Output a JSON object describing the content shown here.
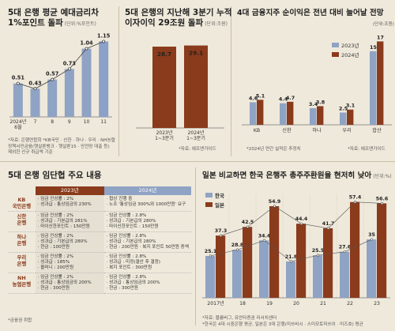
{
  "p1": {
    "title1": "5대 은행 평균 예대금리차",
    "title2": "1%포인트 돌파",
    "unit": "(단위:%포인트)",
    "notes": [
      "*자료: 은행연합회 *KB국민 · 신한 · 하나 · 우리 · NH농협",
      "정책서민금융(햇살론뱅크 · 햇살론15 · 안전망 대출 등)",
      "제외한 신규 취급액 기준"
    ],
    "colors": {
      "bar": "#8fa3c4",
      "last": "#8ba1c8",
      "line": "#444444"
    }
  },
  "p2": {
    "title1": "5대 은행의 지난해 3분기 누적",
    "title2": "이자이익 29조원 돌파",
    "unit": "(단위:조원)",
    "notes": [
      "*자료: 에프앤가이드"
    ],
    "colors": {
      "bar": "#8a3b1c"
    }
  },
  "p3": {
    "title1": "4대 금융지주 순이익은 전년 대비 늘어날 전망",
    "unit": "(단위:조원)",
    "notes": [
      "*2024년 연간 실적은 추정치",
      "*자료: 에프앤가이드"
    ],
    "colors": {
      "a": "#8fa3c4",
      "b": "#8a3b1c"
    }
  },
  "p4": {
    "title": "5대 은행 임단협 주요 내용",
    "head": [
      "2023년",
      "2024년"
    ],
    "rows": [
      {
        "bank": [
          "KB",
          "국민은행"
        ],
        "y2023": [
          "· 임금 인상률 : 2%",
          "· 성과급 : 통상임금의 230%"
        ],
        "y2024": [
          "· 협상 진행 중",
          "· 노조 '통상임금 300%와 1000만원' 요구"
        ]
      },
      {
        "bank": [
          "신한",
          "은행"
        ],
        "y2023": [
          "· 임금 인상률 : 2%",
          "· 성과급 : 기본급의 281%",
          "· 마이신한포인트 : 150만원"
        ],
        "y2024": [
          "· 임금 인상률 : 2.8%",
          "· 성과급 : 기본급의 280%",
          "· 마이신한포인트 : 150만원"
        ]
      },
      {
        "bank": [
          "하나",
          "은행"
        ],
        "y2023": [
          "· 임금 인상률 : 2%",
          "· 성과급 : 기본급의 280%",
          "· 현금 : 100만원"
        ],
        "y2024": [
          "· 임금 인상률 : 2.8%",
          "· 성과급 : 기본급의 280%",
          "· 현금 : 200만원 · 복지 포인트 50만원 증액"
        ]
      },
      {
        "bank": [
          "우리",
          "은행"
        ],
        "y2023": [
          "· 임금 인상률 : 2%",
          "· 성과급 : 185%",
          "· 올머니 : 200만원"
        ],
        "y2024": [
          "· 임금 인상률 : 2.8%",
          "· 성과급 : 미정(결산 후 결정)",
          "· 복지 포인트 : 300만원"
        ]
      },
      {
        "bank": [
          "NH",
          "농협은행"
        ],
        "y2023": [
          "· 임금 인상률 : 2%",
          "· 성과급 : 통상임금의 200%",
          "· 현금 : 300만원"
        ],
        "y2024": [
          "· 임금 인상률 : 2.8%",
          "· 성과급 : 통상임금의 200%",
          "· 현금 : 300만원"
        ]
      }
    ],
    "notes": [
      "*금융권 취합"
    ],
    "colors": {
      "h23": "#8a3b1c",
      "h24": "#8fa3c4"
    }
  },
  "p5": {
    "title": "일본 비교하면 한국 은행주 총주주환원율 현저히 낮아",
    "unit": "(단위:%)",
    "notes": [
      "*자료: 블룸버그, 유안타증권 리서치센터",
      "*한국은 4대 시중은행 평균, 일본은 3대 은행(미쓰비시 · 스미모토미쓰이 · 미즈호) 평균"
    ],
    "colors": {
      "kr": "#8fa3c4",
      "jp": "#8a3b1c"
    }
  },
  "chart_data": [
    {
      "type": "bar",
      "categories": [
        "2024년 6월",
        "7",
        "8",
        "9",
        "10",
        "11"
      ],
      "tick_lines": [
        [
          "2024년",
          "6월"
        ],
        [
          "7"
        ],
        [
          "8"
        ],
        [
          "9"
        ],
        [
          "10"
        ],
        [
          "11"
        ]
      ],
      "values": [
        0.51,
        0.43,
        0.57,
        0.73,
        1.04,
        1.15
      ],
      "labels": [
        "0.51",
        "0.43",
        "0.57",
        "0.73",
        "1.04",
        "1.15"
      ],
      "ylim": [
        0,
        1.3
      ]
    },
    {
      "type": "bar",
      "categories": [
        "2023년 1~3분기",
        "2024년 1~3분기"
      ],
      "tick_lines": [
        [
          "2023년",
          "1~3분기"
        ],
        [
          "2024년",
          "1~3분기"
        ]
      ],
      "values": [
        28.7,
        29.1
      ],
      "labels": [
        "28.7",
        "29.1"
      ],
      "ylim": [
        0,
        34
      ]
    },
    {
      "type": "bar",
      "categories": [
        "KB",
        "신한",
        "하나",
        "우리",
        "합산"
      ],
      "series": [
        {
          "name": "2023년",
          "values": [
            4.6,
            4.4,
            3.4,
            2.5,
            15
          ],
          "labels": [
            "4.6",
            "4.4",
            "3.4",
            "2.5",
            "15"
          ]
        },
        {
          "name": "2024년",
          "values": [
            5.1,
            4.7,
            3.8,
            3.1,
            17
          ],
          "labels": [
            "5.1",
            "4.7",
            "3.8",
            "3.1",
            "17"
          ]
        }
      ],
      "ylim": [
        0,
        19
      ],
      "legend": "top-right"
    },
    {
      "type": "bar",
      "categories": [
        "2017년",
        "18",
        "19",
        "20",
        "21",
        "22",
        "23"
      ],
      "series": [
        {
          "name": "한국",
          "values": [
            25.1,
            28.8,
            34.4,
            21.8,
            25.5,
            27.6,
            35
          ],
          "labels": [
            "25.1",
            "28.8",
            "34.4",
            "21.8",
            "25.5",
            "27.6",
            "35"
          ]
        },
        {
          "name": "일본",
          "values": [
            37.3,
            42.5,
            54.9,
            44.4,
            41.7,
            57.4,
            56.6
          ],
          "labels": [
            "37.3",
            "42.5",
            "54.9",
            "44.4",
            "41.7",
            "57.4",
            "56.6"
          ]
        }
      ],
      "ylim": [
        0,
        62
      ],
      "legend": "top-left"
    }
  ]
}
